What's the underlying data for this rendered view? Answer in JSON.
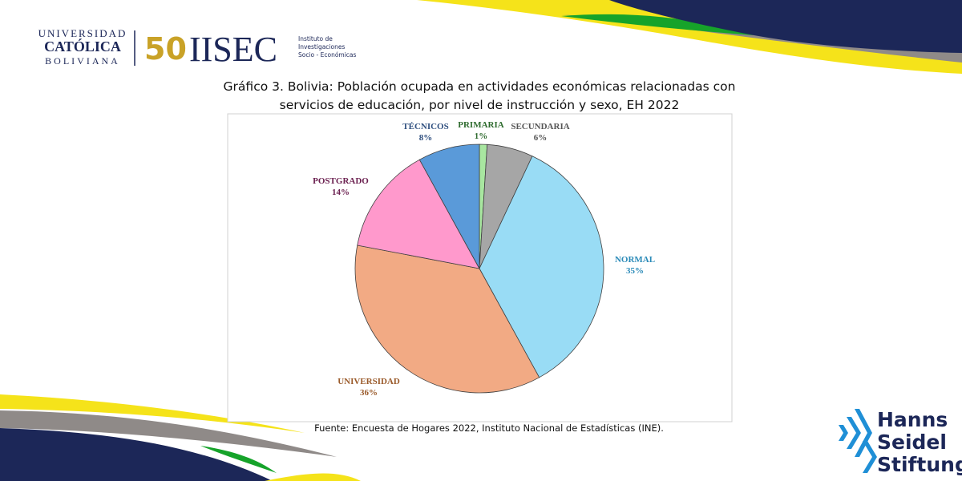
{
  "header": {
    "university": [
      "UNIVERSIDAD",
      "CATÓLICA",
      "BOLIVIANA"
    ],
    "logo_number": "50",
    "institute": "IISEC",
    "institute_name": [
      "Instituto de",
      "Investigaciones",
      "Socio - Económicas"
    ]
  },
  "footer_logo": [
    "Hanns",
    "Seidel",
    "Stiftung"
  ],
  "chart_data": {
    "type": "pie",
    "title": "Gráfico 3. Bolivia: Población ocupada en actividades económicas relacionadas con servicios de educación, por nivel de instrucción y sexo, EH 2022",
    "categories": [
      "PRIMARIA",
      "SECUNDARIA",
      "NORMAL",
      "UNIVERSIDAD",
      "POSTGRADO",
      "TÉCNICOS"
    ],
    "values": [
      1,
      6,
      35,
      36,
      14,
      8
    ],
    "value_labels": [
      "1%",
      "6%",
      "35%",
      "36%",
      "14%",
      "8%"
    ],
    "colors": [
      "#a8e6a0",
      "#a6a6a6",
      "#99dcf5",
      "#f2aa84",
      "#ff99cc",
      "#5a9ad9"
    ],
    "label_colors": [
      "#2e6b2e",
      "#555555",
      "#2a8ab8",
      "#9a5a2a",
      "#6b2050",
      "#2f4f7f"
    ]
  },
  "source": "Fuente: Encuesta de Hogares 2022, Instituto Nacional de Estadísticas (INE)."
}
